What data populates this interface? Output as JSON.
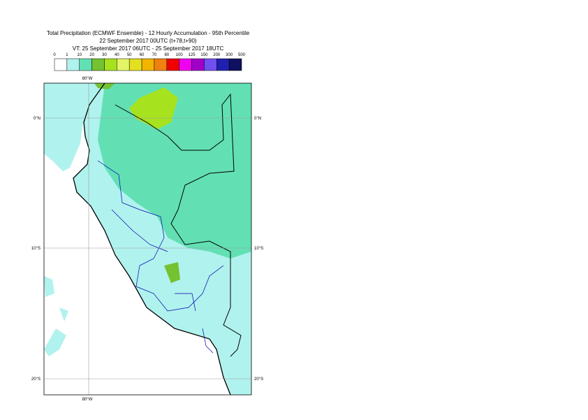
{
  "title": [
    "Total Precipitation (ECMWF Ensemble) - 12 Hourly Accumulation - 95th Percentile",
    "22 September 2017 00UTC (t+78,t+90)",
    "VT: 25 September 2017 06UTC - 25 September 2017 18UTC"
  ],
  "legend": {
    "labels": [
      "0",
      "1",
      "10",
      "20",
      "30",
      "40",
      "50",
      "60",
      "70",
      "80",
      "100",
      "125",
      "150",
      "200",
      "300",
      "500"
    ],
    "colors": [
      "#ffffff",
      "#b0f2ee",
      "#62e0b4",
      "#74c232",
      "#a6e21e",
      "#e4f468",
      "#e2e020",
      "#f2b400",
      "#f08010",
      "#f00000",
      "#f000f0",
      "#a000c8",
      "#7050f0",
      "#2020b0",
      "#101060"
    ]
  },
  "map": {
    "lon_label": "80°W",
    "lat_labels": [
      "0°N",
      "10°S",
      "20°S"
    ]
  }
}
